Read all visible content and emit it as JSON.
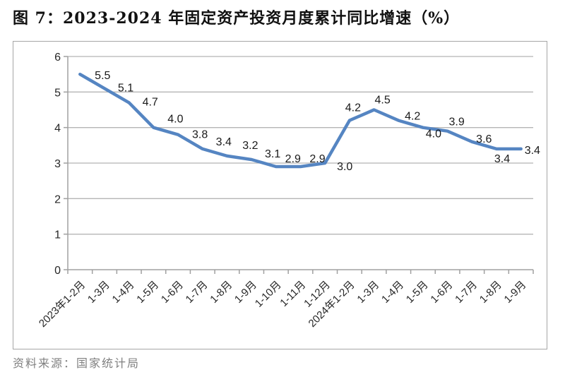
{
  "title": "图 7：2023-2024 年固定资产投资月度累计同比增速（%）",
  "source": "资料来源：国家统计局",
  "chart_data": {
    "type": "line",
    "title": "2023-2024 年固定资产投资月度累计同比增速（%）",
    "categories": [
      "2023年1-2月",
      "1-3月",
      "1-4月",
      "1-5月",
      "1-6月",
      "1-7月",
      "1-8月",
      "1-9月",
      "1-10月",
      "1-11月",
      "1-12月",
      "2024年1-2月",
      "1-3月",
      "1-4月",
      "1-5月",
      "1-6月",
      "1-7月",
      "1-8月",
      "1-9月"
    ],
    "values": [
      5.5,
      5.1,
      4.7,
      4.0,
      3.8,
      3.4,
      3.2,
      3.1,
      2.9,
      2.9,
      3.0,
      4.2,
      4.5,
      4.2,
      4.0,
      3.9,
      3.6,
      3.4,
      3.4
    ],
    "data_labels": [
      "5.5",
      "5.1",
      "4.7",
      "4.0",
      "3.8",
      "3.4",
      "3.2",
      "3.1",
      "2.9",
      "2.9",
      "3.0",
      "4.2",
      "4.5",
      "4.2",
      "4.0",
      "3.9",
      "3.6",
      "3.4",
      "3.4"
    ],
    "xlabel": "",
    "ylabel": "",
    "ylim": [
      0,
      6
    ],
    "y_ticks": [
      0,
      1,
      2,
      3,
      4,
      5,
      6
    ],
    "grid": true,
    "legend": "none",
    "colors": {
      "line": "#5585C2",
      "gridline": "#b5b5b5",
      "axis": "#a0a0a0",
      "text": "#262626",
      "source_text": "#808080"
    }
  }
}
